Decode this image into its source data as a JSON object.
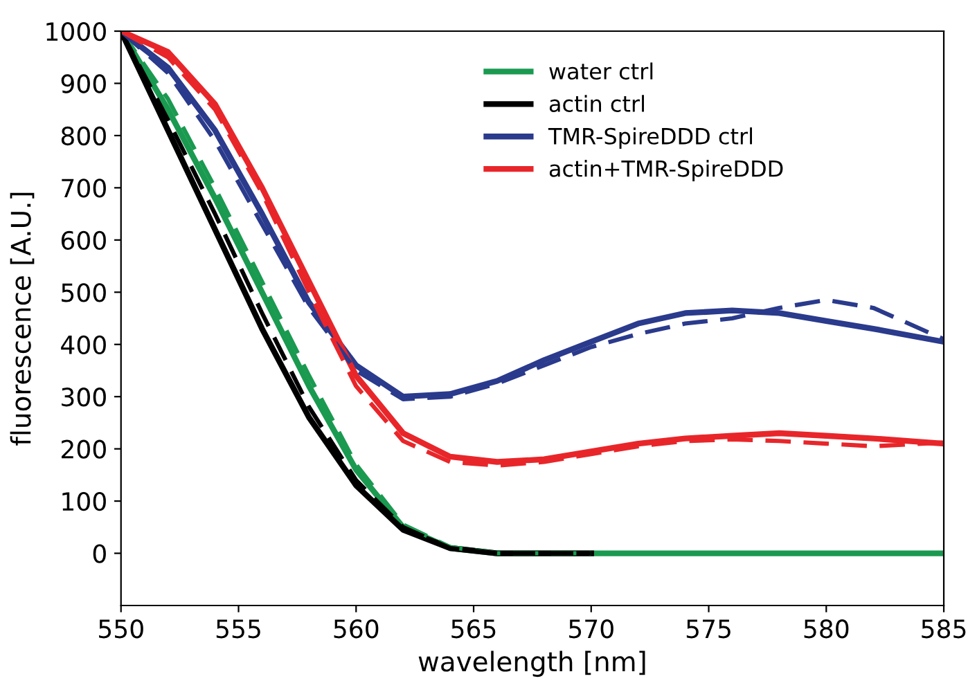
{
  "chart_data": {
    "type": "line",
    "xlabel": "wavelength [nm]",
    "ylabel": "fluorescence [A.U.]",
    "xlim": [
      550,
      585
    ],
    "xticks": [
      550,
      555,
      560,
      565,
      570,
      575,
      580,
      585
    ],
    "ylim": [
      -100,
      1000
    ],
    "yticks": [
      0,
      100,
      200,
      300,
      400,
      500,
      600,
      700,
      800,
      900,
      1000
    ],
    "grid": false,
    "legend": "top right",
    "marker": "none",
    "series": [
      {
        "name": "water ctrl",
        "color": "#1a9a50",
        "line_style": "solid",
        "x": [
          550,
          552,
          554,
          556,
          558,
          560,
          562,
          564,
          566,
          570,
          575,
          580,
          585
        ],
        "values": [
          1000,
          850,
          680,
          500,
          320,
          160,
          50,
          10,
          0,
          0,
          0,
          0,
          0
        ]
      },
      {
        "name": "actin ctrl",
        "color": "#000000",
        "line_style": "solid",
        "x": [
          550,
          552,
          554,
          556,
          558,
          560,
          562,
          564,
          566,
          570
        ],
        "values": [
          1000,
          810,
          620,
          430,
          260,
          130,
          45,
          10,
          0,
          0
        ]
      },
      {
        "name": "TMR-SpireDDD ctrl",
        "color": "#2a3a8c",
        "line_style": "solid",
        "x": [
          550,
          552,
          554,
          556,
          558,
          560,
          562,
          564,
          566,
          568,
          570,
          572,
          574,
          576,
          578,
          580,
          582,
          585
        ],
        "values": [
          1000,
          930,
          810,
          650,
          480,
          360,
          300,
          305,
          330,
          370,
          405,
          440,
          460,
          465,
          460,
          445,
          430,
          405
        ]
      },
      {
        "name": "actin+TMR-SpireDDD",
        "color": "#e8262a",
        "line_style": "solid",
        "x": [
          550,
          552,
          554,
          556,
          558,
          560,
          562,
          564,
          566,
          568,
          570,
          572,
          574,
          576,
          578,
          580,
          582,
          585
        ],
        "values": [
          1000,
          960,
          860,
          700,
          520,
          340,
          230,
          185,
          175,
          180,
          195,
          210,
          220,
          225,
          230,
          225,
          220,
          210
        ]
      },
      {
        "color": "#1a9a50",
        "line_style": "dashed",
        "x": [
          550,
          552,
          554,
          556,
          558,
          560,
          562,
          564,
          566,
          570
        ],
        "values": [
          1000,
          870,
          700,
          520,
          340,
          170,
          55,
          12,
          0,
          0
        ]
      },
      {
        "color": "#000000",
        "line_style": "dashed",
        "x": [
          550,
          552,
          554,
          556,
          558,
          560,
          562,
          564,
          566,
          570
        ],
        "values": [
          1000,
          830,
          650,
          460,
          280,
          140,
          50,
          10,
          0,
          0
        ]
      },
      {
        "color": "#2a3a8c",
        "line_style": "dashed",
        "x": [
          550,
          552,
          554,
          556,
          558,
          560,
          562,
          564,
          566,
          568,
          570,
          572,
          574,
          576,
          578,
          580,
          582,
          585
        ],
        "values": [
          1000,
          920,
          790,
          630,
          470,
          350,
          295,
          300,
          325,
          360,
          395,
          420,
          440,
          450,
          470,
          485,
          470,
          410
        ]
      },
      {
        "color": "#e8262a",
        "line_style": "dashed",
        "x": [
          550,
          552,
          554,
          556,
          558,
          560,
          562,
          564,
          566,
          568,
          570,
          572,
          574,
          576,
          578,
          580,
          582,
          585
        ],
        "values": [
          1000,
          950,
          850,
          690,
          500,
          320,
          215,
          175,
          168,
          175,
          190,
          205,
          215,
          218,
          215,
          210,
          205,
          212
        ]
      }
    ]
  }
}
